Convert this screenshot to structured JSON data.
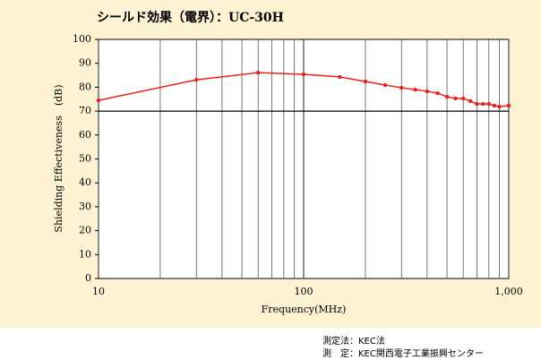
{
  "chart_data": {
    "type": "line",
    "title": "シールド効果（電界）：UC-30H",
    "x_label": "Frequency(MHz)",
    "y_label": "Shielding Effectiveness　(dB)",
    "x": [
      10,
      30,
      60,
      100,
      150,
      200,
      250,
      300,
      350,
      400,
      450,
      500,
      550,
      600,
      650,
      700,
      750,
      800,
      850,
      900,
      1000
    ],
    "series": [
      {
        "name": "UC-30H",
        "color": "#e8231e",
        "values": [
          74.5,
          83.1,
          86.1,
          85.4,
          84.3,
          82.4,
          80.9,
          79.8,
          79,
          78.3,
          77.5,
          76,
          75.3,
          75.3,
          74.2,
          73,
          73,
          73,
          72.3,
          71.9,
          72.3
        ]
      }
    ],
    "xlim": [
      10,
      1000
    ],
    "xticks": [
      10,
      100,
      {
        "value": 1000,
        "label": "1,000"
      }
    ],
    "xscale": "log",
    "ylim": [
      0,
      100
    ],
    "yticks": [
      0,
      10,
      20,
      30,
      40,
      50,
      60,
      70,
      80,
      90,
      100
    ],
    "reference_line": 70
  },
  "notes": [
    "測定法：KEC法",
    "測　定：KEC関西電子工業振興センター"
  ]
}
